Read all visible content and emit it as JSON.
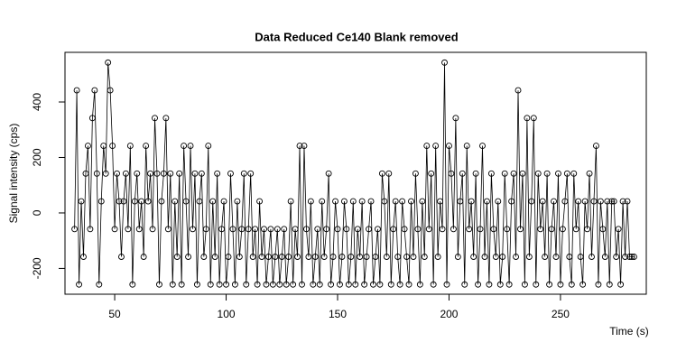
{
  "chart_data": {
    "type": "line_points",
    "title": "Data Reduced Ce140 Blank removed",
    "xlabel": "Time (s)",
    "ylabel": "Signal intensity (cps)",
    "color": "#000000",
    "xlim": [
      27.7,
      288.5
    ],
    "ylim": [
      -293,
      579
    ],
    "xticks": [
      50,
      100,
      150,
      200,
      250
    ],
    "yticks": [
      -200,
      0,
      200,
      400
    ],
    "x": [
      32,
      33,
      34,
      35,
      36,
      37,
      38,
      39,
      40,
      41,
      42,
      43,
      44,
      45,
      46,
      47,
      48,
      49,
      50,
      51,
      52,
      53,
      54,
      55,
      56,
      57,
      58,
      59,
      60,
      61,
      62,
      63,
      64,
      65,
      66,
      67,
      68,
      69,
      70,
      71,
      72,
      73,
      74,
      75,
      76,
      77,
      78,
      79,
      80,
      81,
      82,
      83,
      84,
      85,
      86,
      87,
      88,
      89,
      90,
      91,
      92,
      93,
      94,
      95,
      96,
      97,
      98,
      99,
      100,
      101,
      102,
      103,
      104,
      105,
      106,
      107,
      108,
      109,
      110,
      111,
      112,
      113,
      114,
      115,
      116,
      117,
      118,
      119,
      120,
      121,
      122,
      123,
      124,
      125,
      126,
      127,
      128,
      129,
      130,
      131,
      132,
      133,
      134,
      135,
      136,
      137,
      138,
      139,
      140,
      141,
      142,
      143,
      144,
      145,
      146,
      147,
      148,
      149,
      150,
      151,
      152,
      153,
      154,
      155,
      156,
      157,
      158,
      159,
      160,
      161,
      162,
      163,
      164,
      165,
      166,
      167,
      168,
      169,
      170,
      171,
      172,
      173,
      174,
      175,
      176,
      177,
      178,
      179,
      180,
      181,
      182,
      183,
      184,
      185,
      186,
      187,
      188,
      189,
      190,
      191,
      192,
      193,
      194,
      195,
      196,
      197,
      198,
      199,
      200,
      201,
      202,
      203,
      204,
      205,
      206,
      207,
      208,
      209,
      210,
      211,
      212,
      213,
      214,
      215,
      216,
      217,
      218,
      219,
      220,
      221,
      222,
      223,
      224,
      225,
      226,
      227,
      228,
      229,
      230,
      231,
      232,
      233,
      234,
      235,
      236,
      237,
      238,
      239,
      240,
      241,
      242,
      243,
      244,
      245,
      246,
      247,
      248,
      249,
      250,
      251,
      252,
      253,
      254,
      255,
      256,
      257,
      258,
      259,
      260,
      261,
      262,
      263,
      264,
      265,
      266,
      267,
      268,
      269,
      270,
      271,
      272,
      273,
      274,
      275,
      276,
      277,
      278,
      279,
      280,
      281,
      282,
      283
    ],
    "values": [
      -58,
      442,
      -258,
      42,
      -158,
      142,
      242,
      -58,
      342,
      442,
      142,
      -258,
      42,
      242,
      142,
      542,
      442,
      242,
      -58,
      142,
      42,
      -158,
      42,
      142,
      -58,
      242,
      -258,
      42,
      142,
      -58,
      42,
      -158,
      242,
      42,
      142,
      -58,
      342,
      142,
      -258,
      42,
      142,
      342,
      -58,
      142,
      -258,
      42,
      -158,
      142,
      -258,
      242,
      42,
      -158,
      242,
      -58,
      142,
      -258,
      42,
      142,
      -158,
      -58,
      242,
      -258,
      42,
      -158,
      142,
      -258,
      -58,
      42,
      -258,
      -158,
      142,
      -58,
      -258,
      42,
      -158,
      -58,
      142,
      -258,
      -58,
      142,
      -158,
      -58,
      -258,
      42,
      -158,
      -58,
      -258,
      -158,
      -58,
      -258,
      -158,
      -58,
      -258,
      -158,
      -58,
      -258,
      -158,
      42,
      -258,
      -58,
      -158,
      242,
      -258,
      242,
      -58,
      -158,
      42,
      -258,
      -158,
      -58,
      -258,
      42,
      -158,
      -58,
      142,
      -258,
      -158,
      42,
      -58,
      -258,
      -158,
      42,
      -58,
      -258,
      -158,
      42,
      -258,
      -58,
      -158,
      42,
      -258,
      -158,
      -58,
      42,
      -258,
      -158,
      -58,
      -258,
      142,
      42,
      -158,
      142,
      -258,
      -58,
      42,
      -158,
      -258,
      42,
      -58,
      -158,
      -258,
      42,
      -158,
      142,
      -58,
      -258,
      42,
      -158,
      242,
      -58,
      142,
      -258,
      242,
      -158,
      42,
      -58,
      542,
      -258,
      242,
      142,
      -58,
      342,
      -158,
      42,
      142,
      -258,
      242,
      -58,
      42,
      -158,
      142,
      -258,
      -58,
      242,
      -158,
      42,
      -258,
      142,
      -58,
      -158,
      42,
      -258,
      -158,
      142,
      -58,
      -258,
      42,
      142,
      -158,
      442,
      -58,
      142,
      -258,
      342,
      -158,
      42,
      342,
      -258,
      142,
      -58,
      42,
      -158,
      142,
      -258,
      -58,
      42,
      -158,
      142,
      -258,
      -58,
      42,
      142,
      -158,
      -258,
      142,
      -58,
      42,
      -158,
      -258,
      42,
      -58,
      142,
      -158,
      42,
      242,
      -258,
      42,
      -58,
      -158,
      42,
      -258,
      42,
      42,
      -158,
      -58,
      -258,
      42,
      -158,
      42,
      -158,
      -158,
      -158
    ]
  }
}
